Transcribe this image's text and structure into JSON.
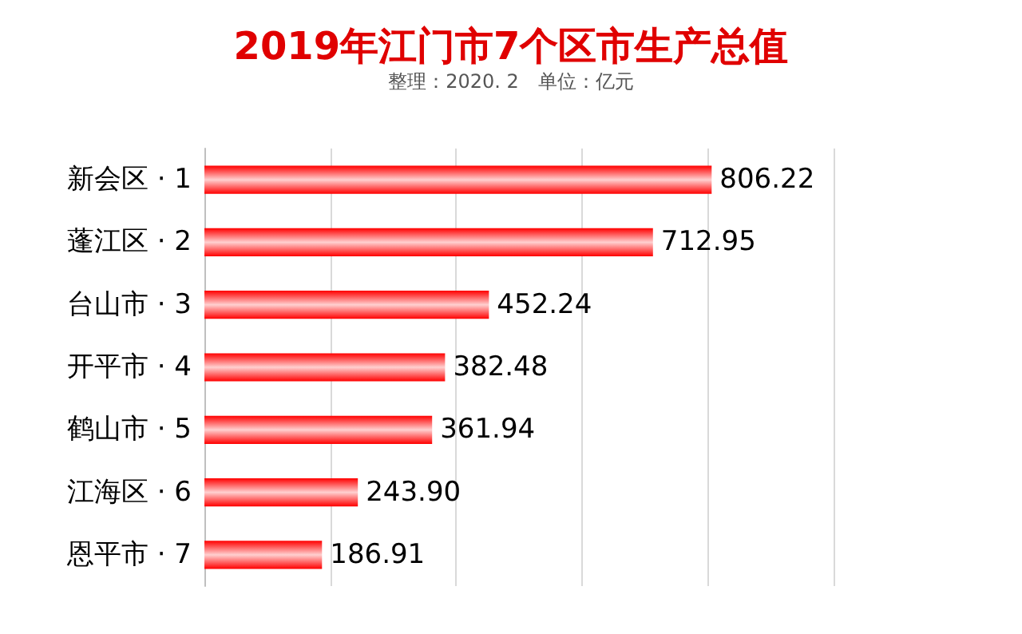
{
  "chart_data": {
    "type": "bar",
    "orientation": "horizontal",
    "title": "2019年江门市7个区市生产总值",
    "subtitle": "整理：2020. 2　单位：亿元",
    "categories": [
      "新会区 · 1",
      "蓬江区 · 2",
      "台山市 · 3",
      "开平市 · 4",
      "鹤山市 · 5",
      "江海区 · 6",
      "恩平市 · 7"
    ],
    "values": [
      806.22,
      712.95,
      452.24,
      382.48,
      361.94,
      243.9,
      186.91
    ],
    "value_labels": [
      "806.22",
      "712.95",
      "452.24",
      "382.48",
      "361.94",
      "243.90",
      "186.91"
    ],
    "color": "#ff0000",
    "xlim": [
      0,
      1000
    ],
    "xticks": [
      {
        "value": 0,
        "label": null
      },
      {
        "value": 200,
        "label": null
      },
      {
        "value": 400,
        "label": null
      },
      {
        "value": 600,
        "label": null
      },
      {
        "value": 800,
        "label": null
      },
      {
        "value": 1000,
        "label": null
      }
    ],
    "grid": "x",
    "tick_labels": "y"
  }
}
